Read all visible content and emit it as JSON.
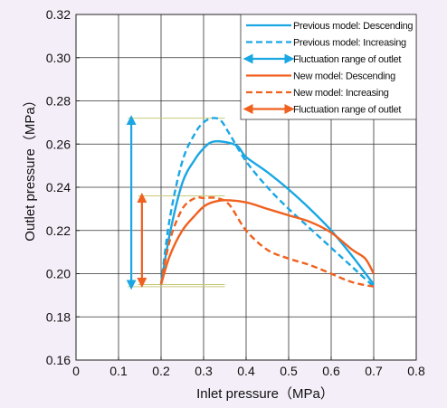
{
  "chart_data": {
    "type": "line",
    "title": "",
    "xlabel": "Inlet pressure（MPa）",
    "ylabel": "Outlet pressure（MPa）",
    "xlim": [
      0,
      0.8
    ],
    "ylim": [
      0.16,
      0.32
    ],
    "x_ticks": [
      "0",
      "0.1",
      "0.2",
      "0.3",
      "0.4",
      "0.5",
      "0.6",
      "0.7",
      "0.8"
    ],
    "y_ticks": [
      "0.16",
      "0.18",
      "0.20",
      "0.22",
      "0.24",
      "0.26",
      "0.28",
      "0.30",
      "0.32"
    ],
    "grid": true,
    "legend_position": "top-right",
    "series": [
      {
        "name": "Previous model: Descending",
        "color": "#1aa7e3",
        "style": "solid",
        "x": [
          0.2,
          0.22,
          0.25,
          0.28,
          0.3,
          0.32,
          0.35,
          0.38,
          0.4,
          0.45,
          0.5,
          0.55,
          0.6,
          0.65,
          0.7
        ],
        "y": [
          0.195,
          0.218,
          0.242,
          0.253,
          0.258,
          0.261,
          0.261,
          0.259,
          0.254,
          0.247,
          0.239,
          0.23,
          0.22,
          0.208,
          0.195
        ]
      },
      {
        "name": "Previous model: Increasing",
        "color": "#1aa7e3",
        "style": "dashed",
        "x": [
          0.2,
          0.22,
          0.25,
          0.28,
          0.3,
          0.32,
          0.34,
          0.36,
          0.4,
          0.45,
          0.5,
          0.55,
          0.6,
          0.65,
          0.7
        ],
        "y": [
          0.195,
          0.225,
          0.252,
          0.265,
          0.27,
          0.272,
          0.271,
          0.265,
          0.252,
          0.24,
          0.23,
          0.221,
          0.212,
          0.203,
          0.194
        ]
      },
      {
        "name": "New model: Descending",
        "color": "#f0601e",
        "style": "solid",
        "x": [
          0.2,
          0.22,
          0.25,
          0.28,
          0.3,
          0.32,
          0.35,
          0.4,
          0.45,
          0.5,
          0.55,
          0.6,
          0.65,
          0.68,
          0.7
        ],
        "y": [
          0.195,
          0.208,
          0.22,
          0.227,
          0.231,
          0.233,
          0.234,
          0.233,
          0.23,
          0.227,
          0.224,
          0.219,
          0.211,
          0.207,
          0.2
        ]
      },
      {
        "name": "New model: Increasing",
        "color": "#f0601e",
        "style": "dashed",
        "x": [
          0.2,
          0.22,
          0.25,
          0.28,
          0.3,
          0.33,
          0.36,
          0.4,
          0.45,
          0.5,
          0.55,
          0.6,
          0.65,
          0.7
        ],
        "y": [
          0.195,
          0.215,
          0.23,
          0.235,
          0.235,
          0.235,
          0.232,
          0.22,
          0.211,
          0.207,
          0.204,
          0.2,
          0.196,
          0.194
        ]
      }
    ],
    "fluctuation_ranges": [
      {
        "name": "Fluctuation range of outlet",
        "color": "#1aa7e3",
        "x": 0.13,
        "y_min": 0.194,
        "y_max": 0.272
      },
      {
        "name": "Fluctuation range of outlet",
        "color": "#f0601e",
        "x": 0.155,
        "y_min": 0.195,
        "y_max": 0.236
      }
    ],
    "guide_line_color": "#c9c97a",
    "legend": [
      {
        "label": "Previous model: Descending",
        "color": "#1aa7e3",
        "kind": "solid"
      },
      {
        "label": "Previous model: Increasing",
        "color": "#1aa7e3",
        "kind": "dashed"
      },
      {
        "label": "Fluctuation range of outlet",
        "color": "#1aa7e3",
        "kind": "arrow"
      },
      {
        "label": "New model: Descending",
        "color": "#f0601e",
        "kind": "solid"
      },
      {
        "label": "New model: Increasing",
        "color": "#f0601e",
        "kind": "dashed"
      },
      {
        "label": "Fluctuation range of outlet",
        "color": "#f0601e",
        "kind": "arrow"
      }
    ]
  }
}
